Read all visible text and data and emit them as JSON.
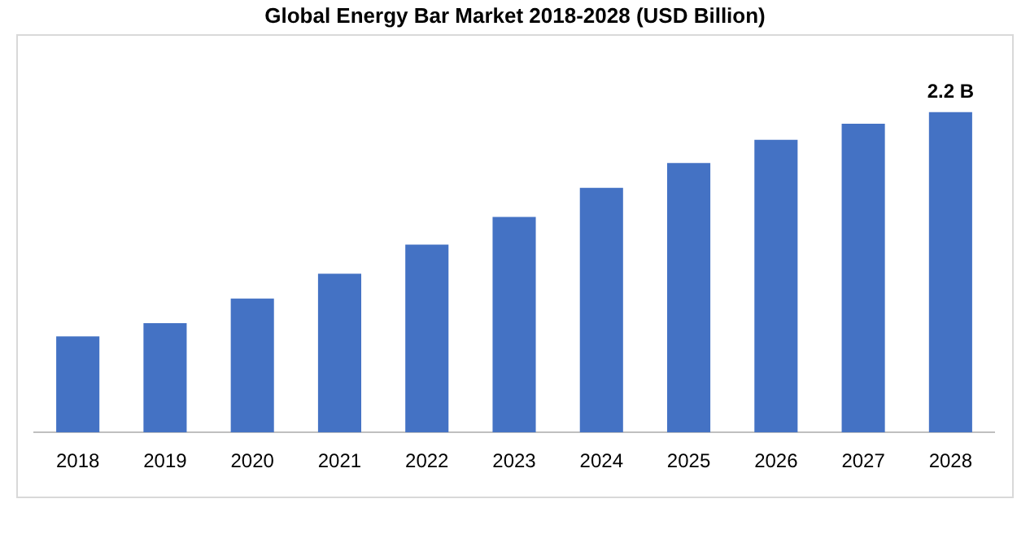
{
  "chart_data": {
    "type": "bar",
    "title": "Global Energy Bar Market 2018-2028 (USD Billion)",
    "categories": [
      "2018",
      "2019",
      "2020",
      "2021",
      "2022",
      "2023",
      "2024",
      "2025",
      "2026",
      "2027",
      "2028"
    ],
    "values": [
      0.66,
      0.75,
      0.92,
      1.09,
      1.29,
      1.48,
      1.68,
      1.85,
      2.01,
      2.12,
      2.2
    ],
    "value_labels": [
      null,
      null,
      null,
      null,
      null,
      null,
      null,
      null,
      null,
      null,
      "2.2 B"
    ],
    "tick_labels": "x",
    "color": "#4472c4",
    "legend": false
  }
}
